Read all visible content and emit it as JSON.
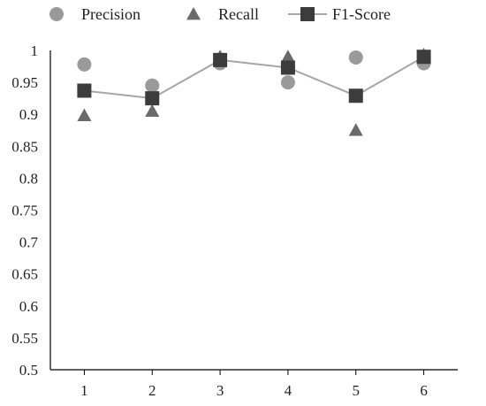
{
  "chart_data": {
    "type": "scatter",
    "title": "",
    "xlabel": "",
    "ylabel": "",
    "x": [
      1,
      2,
      3,
      4,
      5,
      6
    ],
    "x_tick_labels": [
      "1",
      "2",
      "3",
      "4",
      "5",
      "6"
    ],
    "xlim": [
      0.5,
      6.5
    ],
    "ylim": [
      0.5,
      1
    ],
    "y_ticks": [
      0.5,
      0.55,
      0.6,
      0.65,
      0.7,
      0.75,
      0.8,
      0.85,
      0.9,
      0.95,
      1
    ],
    "y_tick_labels": [
      "0.5",
      "0.55",
      "0.6",
      "0.65",
      "0.7",
      "0.75",
      "0.8",
      "0.85",
      "0.9",
      "0.95",
      "1"
    ],
    "grid": false,
    "legend_position": "top",
    "series": [
      {
        "name": "Precision",
        "marker": "circle",
        "line": false,
        "color": "#9a9a9a",
        "values": [
          0.978,
          0.945,
          0.98,
          0.95,
          0.989,
          0.98
        ]
      },
      {
        "name": "Recall",
        "marker": "triangle",
        "line": false,
        "color": "#6a6a6a",
        "values": [
          0.898,
          0.905,
          0.99,
          0.99,
          0.875,
          0.993
        ]
      },
      {
        "name": "F1-Score",
        "marker": "square",
        "line": true,
        "color": "#3c3c3c",
        "line_color": "#a6a6a6",
        "values": [
          0.937,
          0.925,
          0.985,
          0.973,
          0.929,
          0.99
        ]
      }
    ]
  }
}
